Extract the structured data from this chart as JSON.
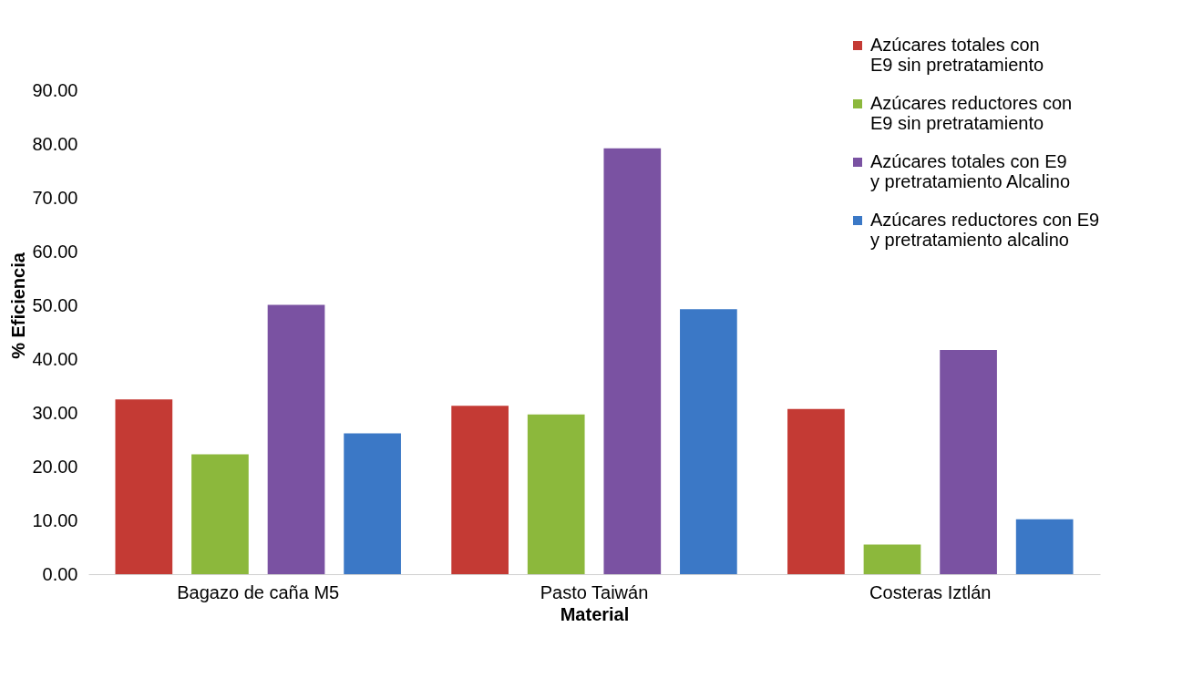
{
  "chart_data": {
    "type": "bar",
    "xlabel": "Material",
    "ylabel": "% Eficiencia",
    "categories": [
      "Bagazo de caña M5",
      "Pasto Taiwán",
      "Costeras  Iztlán"
    ],
    "series": [
      {
        "name": "Azúcares totales con E9 sin pretratamiento",
        "color": "#c43a34",
        "values": [
          32.5,
          31.3,
          30.7
        ]
      },
      {
        "name": "Azúcares reductores con E9 sin pretratamiento",
        "color": "#8cb83c",
        "values": [
          22.3,
          29.7,
          5.5
        ]
      },
      {
        "name": "Azúcares totales con E9 y pretratamiento Alcalino",
        "color": "#7a52a2",
        "values": [
          50.1,
          79.2,
          41.7
        ]
      },
      {
        "name": "Azúcares reductores con E9 y pretratamiento alcalino",
        "color": "#3b78c6",
        "values": [
          26.2,
          49.3,
          10.2
        ]
      }
    ],
    "ylim": [
      0,
      100
    ],
    "yticks": [
      {
        "value": 0,
        "label": "0.00"
      },
      {
        "value": 10,
        "label": "10.00"
      },
      {
        "value": 20,
        "label": "20.00"
      },
      {
        "value": 30,
        "label": "30.00"
      },
      {
        "value": 40,
        "label": "40.00"
      },
      {
        "value": 50,
        "label": "50.00"
      },
      {
        "value": 60,
        "label": "60.00"
      },
      {
        "value": 70,
        "label": "70.00"
      },
      {
        "value": 80,
        "label": "80.00"
      },
      {
        "value": 90,
        "label": "90.00"
      }
    ],
    "grid": false,
    "legend": "top right"
  }
}
